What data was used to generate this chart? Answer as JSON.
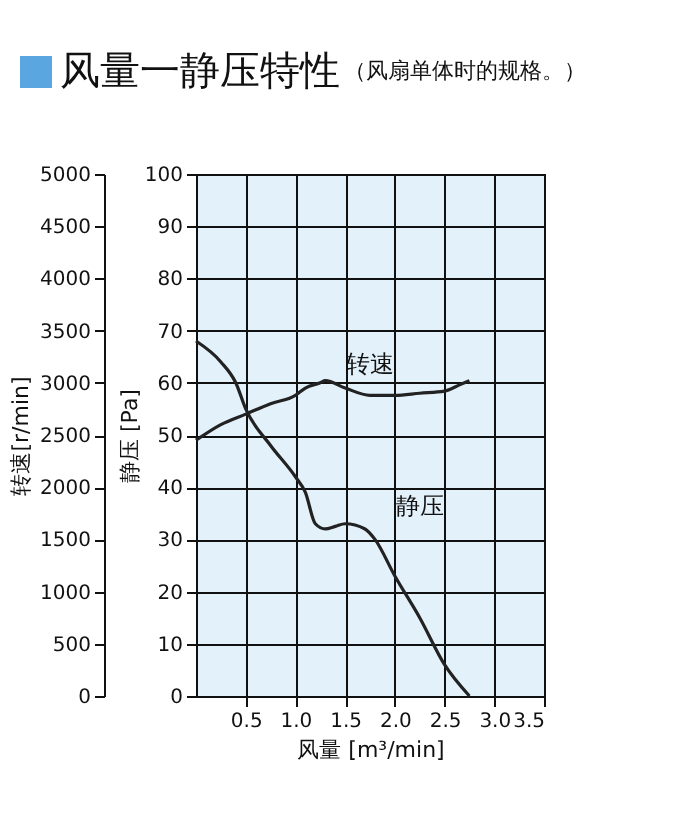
{
  "chart_data": {
    "type": "line",
    "title": "风量一静压特性",
    "subtitle": "（风扇单体时的规格。）",
    "xlabel": "风量 [m³/min]",
    "ylabel": "静压 [Pa]",
    "y2label": "转速[r/min]",
    "x": [
      0,
      0.25,
      0.4,
      0.5,
      0.75,
      1.0,
      1.1,
      1.2,
      1.3,
      1.4,
      1.5,
      1.7,
      1.8,
      2.0,
      2.25,
      2.5,
      2.75
    ],
    "series": [
      {
        "name": "静压",
        "color": "#222222",
        "values": [
          68,
          64,
          60,
          55,
          48,
          42,
          39,
          33,
          32,
          32.5,
          33,
          32,
          30,
          23,
          15,
          6,
          0
        ]
      },
      {
        "name": "转速",
        "color": "#222222",
        "axis": "y2",
        "x": [
          0,
          0.25,
          0.5,
          0.75,
          1.0,
          1.1,
          1.25,
          1.3,
          1.5,
          1.75,
          2.0,
          2.25,
          2.5,
          2.65,
          2.75
        ],
        "values": [
          2450,
          2600,
          2700,
          2800,
          2880,
          2950,
          3000,
          3020,
          2950,
          2880,
          2880,
          2900,
          2920,
          2980,
          3020
        ]
      }
    ],
    "xlim": [
      0,
      3.5
    ],
    "xticks": [
      0.5,
      {
        "value": 1,
        "label": "1.0"
      },
      1.5,
      {
        "value": 2,
        "label": "2.0"
      },
      2.5,
      {
        "value": 3,
        "label": "3.0"
      },
      3.5
    ],
    "ylim": [
      0,
      100
    ],
    "yticks": [
      0,
      10,
      20,
      30,
      40,
      50,
      60,
      70,
      80,
      90,
      100
    ],
    "y2lim": [
      0,
      5000
    ],
    "y2ticks": [
      0,
      500,
      1000,
      1500,
      2000,
      2500,
      3000,
      3500,
      4000,
      4500,
      5000
    ],
    "grid": true
  }
}
